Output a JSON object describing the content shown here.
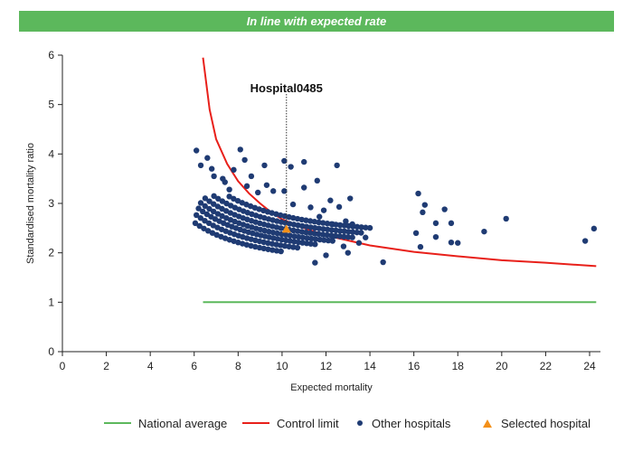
{
  "banner": {
    "text": "In line with expected rate"
  },
  "colors": {
    "banner": "#5cb85c",
    "national": "#5cb85c",
    "control": "#e8201a",
    "other": "#1f3b73",
    "selected": "#f39019"
  },
  "chart_data": {
    "type": "scatter",
    "xlabel": "Expected mortality",
    "ylabel": "Standardised mortality ratio",
    "xlim": [
      0,
      25
    ],
    "ylim": [
      0,
      6
    ],
    "xticks": [
      0,
      2,
      4,
      6,
      8,
      10,
      12,
      14,
      16,
      18,
      20,
      22,
      24
    ],
    "yticks": [
      0,
      1,
      2,
      3,
      4,
      5,
      6
    ],
    "grid": false,
    "legend_position": "bottom",
    "annotation": {
      "label": "Hospital0485",
      "x": 10.2,
      "y": 2.48
    },
    "series": [
      {
        "name": "National average",
        "kind": "line",
        "points": [
          [
            6.4,
            1.0
          ],
          [
            24.3,
            1.0
          ]
        ]
      },
      {
        "name": "Control limit",
        "kind": "line",
        "points": [
          [
            6.4,
            5.95
          ],
          [
            6.7,
            4.9
          ],
          [
            7.0,
            4.3
          ],
          [
            7.5,
            3.8
          ],
          [
            8,
            3.45
          ],
          [
            8.5,
            3.2
          ],
          [
            9,
            3.0
          ],
          [
            9.5,
            2.82
          ],
          [
            10,
            2.68
          ],
          [
            11,
            2.5
          ],
          [
            12,
            2.35
          ],
          [
            13,
            2.25
          ],
          [
            14,
            2.15
          ],
          [
            16,
            2.02
          ],
          [
            18,
            1.93
          ],
          [
            20,
            1.85
          ],
          [
            22,
            1.8
          ],
          [
            24.3,
            1.73
          ]
        ]
      },
      {
        "name": "Other hospitals",
        "kind": "scatter",
        "points": [
          [
            6.1,
            4.07
          ],
          [
            6.3,
            3.77
          ],
          [
            6.6,
            3.92
          ],
          [
            6.8,
            3.7
          ],
          [
            7.3,
            3.5
          ],
          [
            7.8,
            3.68
          ],
          [
            8.1,
            4.09
          ],
          [
            8.3,
            3.88
          ],
          [
            8.6,
            3.55
          ],
          [
            9.2,
            3.77
          ],
          [
            10.1,
            3.86
          ],
          [
            10.4,
            3.74
          ],
          [
            11.0,
            3.84
          ],
          [
            12.5,
            3.77
          ],
          [
            6.9,
            3.55
          ],
          [
            7.4,
            3.43
          ],
          [
            7.6,
            3.28
          ],
          [
            8.4,
            3.35
          ],
          [
            8.9,
            3.22
          ],
          [
            9.3,
            3.37
          ],
          [
            9.6,
            3.25
          ],
          [
            10.1,
            3.25
          ],
          [
            11.0,
            3.32
          ],
          [
            11.6,
            3.46
          ],
          [
            12.2,
            3.06
          ],
          [
            13.1,
            3.1
          ],
          [
            10.5,
            2.98
          ],
          [
            11.3,
            2.92
          ],
          [
            11.9,
            2.86
          ],
          [
            12.6,
            2.93
          ],
          [
            12.9,
            2.64
          ],
          [
            13.2,
            2.58
          ],
          [
            12.3,
            2.58
          ],
          [
            11.7,
            2.73
          ],
          [
            12.3,
            2.33
          ],
          [
            12.8,
            2.13
          ],
          [
            13.5,
            2.2
          ],
          [
            13.8,
            2.31
          ],
          [
            11.5,
            1.8
          ],
          [
            12.0,
            1.95
          ],
          [
            13.0,
            2.0
          ],
          [
            14.6,
            1.81
          ],
          [
            16.2,
            3.2
          ],
          [
            16.5,
            2.97
          ],
          [
            16.4,
            2.82
          ],
          [
            17.4,
            2.88
          ],
          [
            17.0,
            2.6
          ],
          [
            17.7,
            2.6
          ],
          [
            16.1,
            2.4
          ],
          [
            16.3,
            2.12
          ],
          [
            17.0,
            2.32
          ],
          [
            17.7,
            2.21
          ],
          [
            18.0,
            2.2
          ],
          [
            19.2,
            2.43
          ],
          [
            20.2,
            2.69
          ],
          [
            23.8,
            2.24
          ],
          [
            24.2,
            2.49
          ]
        ]
      },
      {
        "name": "Selected hospital",
        "kind": "marker",
        "points": [
          [
            10.2,
            2.48
          ]
        ]
      }
    ]
  }
}
